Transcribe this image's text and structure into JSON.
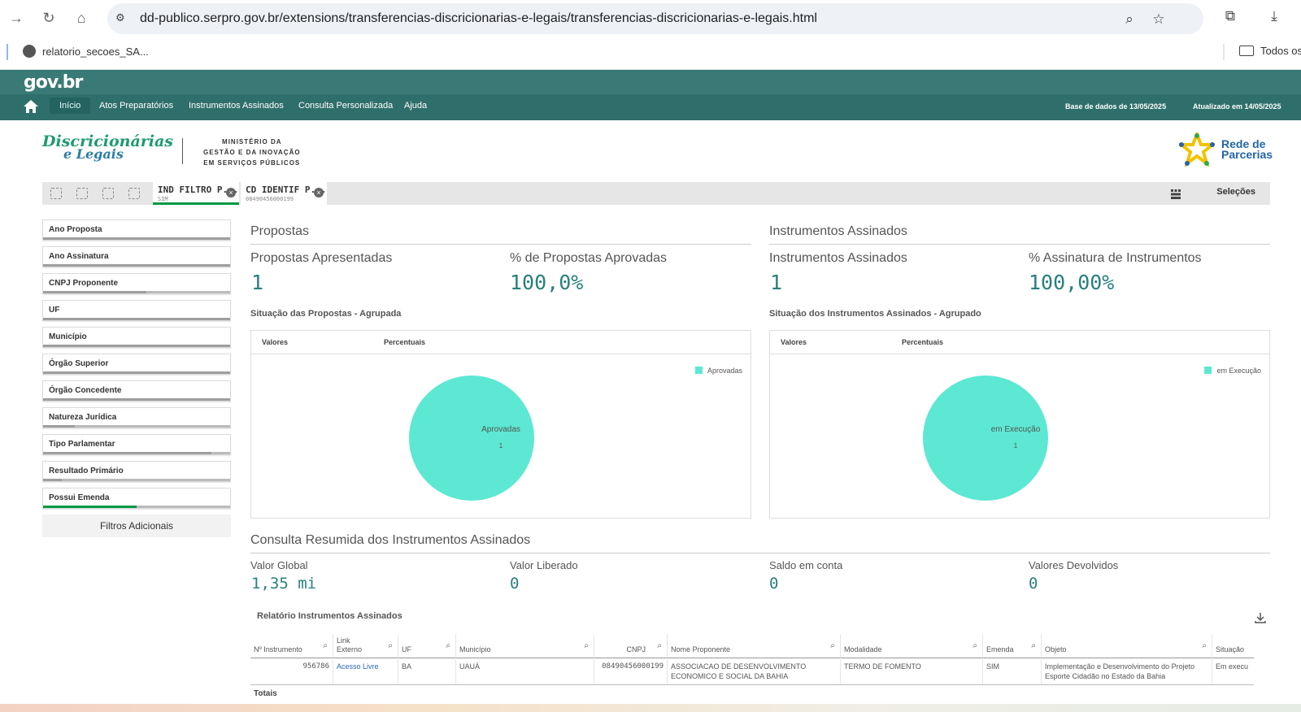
{
  "browser": {
    "url": "dd-publico.serpro.gov.br/extensions/transferencias-discricionarias-e-legais/transferencias-discricionarias-e-legais.html",
    "bookmark": "relatorio_secoes_SA...",
    "bookmark_folder": "Todos os"
  },
  "header": {
    "logo": "gov.br",
    "nav": [
      "Início",
      "Atos Preparatórios",
      "Instrumentos Assinados",
      "Consulta Personalizada",
      "Ajuda"
    ],
    "base_date": "Base de dados de 13/05/2025",
    "updated": "Atualizado em 14/05/2025"
  },
  "branding": {
    "app_logo_line1": "Discricionárias",
    "app_logo_line2": "e Legais",
    "ministry_line1": "MINISTÉRIO DA",
    "ministry_line2": "GESTÃO E DA INOVAÇÃO",
    "ministry_line3": "EM SERVIÇOS PÚBLICOS",
    "partner_line1": "Rede de",
    "partner_line2": "Parcerias"
  },
  "selections": {
    "chips": [
      {
        "title": "IND FILTRO P...",
        "value": "SIM"
      },
      {
        "title": "CD IDENTIF P...",
        "value": "08490456000199"
      }
    ],
    "button": "Seleções"
  },
  "filters": [
    {
      "label": "Ano Proposta",
      "fill": 1.0
    },
    {
      "label": "Ano Assinatura",
      "fill": 1.0
    },
    {
      "label": "CNPJ Proponente",
      "fill": 0.55
    },
    {
      "label": "UF",
      "fill": 1.0
    },
    {
      "label": "Município",
      "fill": 1.0
    },
    {
      "label": "Órgão Superior",
      "fill": 1.0
    },
    {
      "label": "Órgão Concedente",
      "fill": 1.0
    },
    {
      "label": "Natureza Jurídica",
      "fill": 0.17
    },
    {
      "label": "Tipo Parlamentar",
      "fill": 0.9
    },
    {
      "label": "Resultado Primário",
      "fill": 0.1
    },
    {
      "label": "Possui Emenda",
      "fill": 0.5
    }
  ],
  "filters_more": "Filtros Adicionais",
  "propostas": {
    "title": "Propostas",
    "kpi1_label": "Propostas Apresentadas",
    "kpi1_value": "1",
    "kpi2_label": "% de Propostas Aprovadas",
    "kpi2_value": "100,0%",
    "chart_title": "Situação das Propostas - Agrupada",
    "tab1": "Valores",
    "tab2": "Percentuais",
    "legend": "Aprovadas",
    "slice_label": "Aprovadas",
    "slice_value": "1"
  },
  "instrumentos": {
    "title": "Instrumentos Assinados",
    "kpi1_label": "Instrumentos Assinados",
    "kpi1_value": "1",
    "kpi2_label": "% Assinatura de Instrumentos",
    "kpi2_value": "100,00%",
    "chart_title": "Situação dos Instrumentos Assinados - Agrupado",
    "tab1": "Valores",
    "tab2": "Percentuais",
    "legend": "em Execução",
    "slice_label": "em Execução",
    "slice_value": "1"
  },
  "chart_data": [
    {
      "type": "pie",
      "title": "Situação das Propostas - Agrupada",
      "categories": [
        "Aprovadas"
      ],
      "values": [
        1
      ],
      "legend_position": "top-right",
      "color": "#5ce8d2"
    },
    {
      "type": "pie",
      "title": "Situação dos Instrumentos Assinados - Agrupado",
      "categories": [
        "em Execução"
      ],
      "values": [
        1
      ],
      "legend_position": "top-right",
      "color": "#5ce8d2"
    }
  ],
  "consulta": {
    "title": "Consulta Resumida dos Instrumentos Assinados",
    "metrics": [
      {
        "label": "Valor Global",
        "value": "1,35 mi"
      },
      {
        "label": "Valor Liberado",
        "value": "0"
      },
      {
        "label": "Saldo em conta",
        "value": "0"
      },
      {
        "label": "Valores Devolvidos",
        "value": "0"
      }
    ]
  },
  "table": {
    "title": "Relatório Instrumentos Assinados",
    "columns": [
      "Nº Instrumento",
      "Link Externo",
      "UF",
      "Município",
      "CNPJ",
      "Nome Proponente",
      "Modalidade",
      "Emenda",
      "Objeto",
      "Situação"
    ],
    "row": [
      "956786",
      "Acesso Livre",
      "BA",
      "UAUÁ",
      "08490456000199",
      "ASSOCIACAO DE DESENVOLVIMENTO ECONOMICO E SOCIAL DA BAHIA",
      "TERMO DE FOMENTO",
      "SIM",
      "Implementação e Desenvolvimento do Projeto Esporte Cidadão no Estado da Bahia",
      "Em execu"
    ],
    "totals": "Totais"
  }
}
